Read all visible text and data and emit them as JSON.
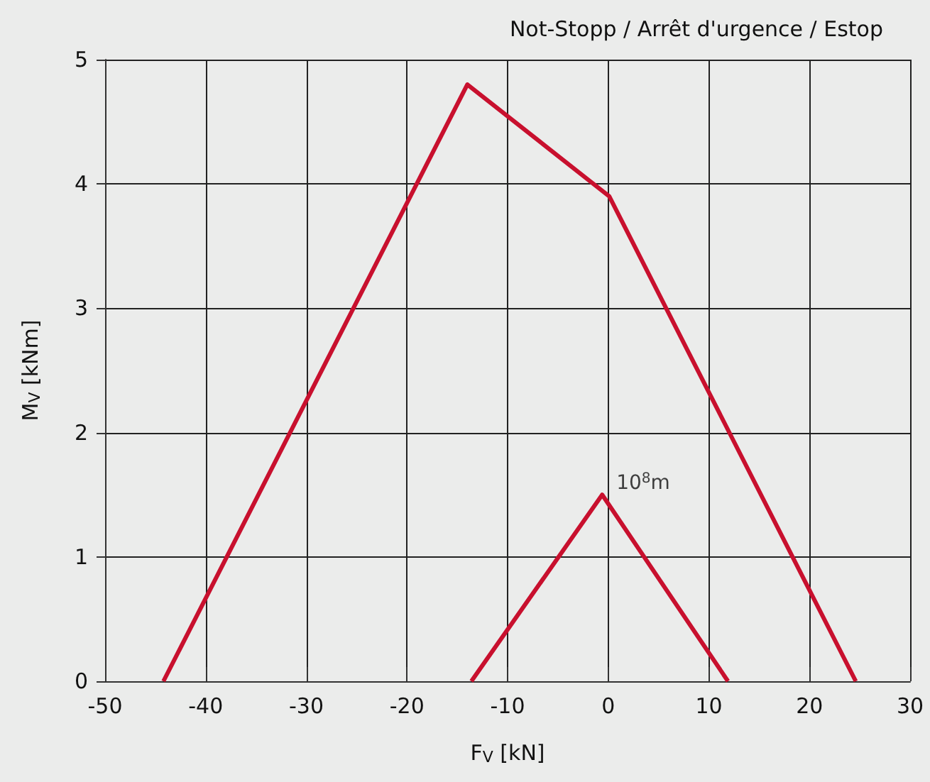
{
  "chart_data": {
    "type": "line",
    "title": "Not-Stopp / Arrêt d'urgence / Estop",
    "xlabel": "F$_{V}$ [kN]",
    "ylabel": "M$_{V}$ [kNm]",
    "series": [
      {
        "color": "#c8102e",
        "x": [
          -44.2,
          -14,
          0.1,
          24.6
        ],
        "values": [
          0,
          4.8,
          3.9,
          0
        ]
      },
      {
        "color": "#c8102e",
        "x": [
          -13.6,
          -0.6,
          11.9
        ],
        "values": [
          0,
          1.5,
          0
        ]
      }
    ],
    "annotations": [
      {
        "text": "10$^{8}$m",
        "x": -0.6,
        "y": 1.5
      }
    ],
    "xlim": [
      -50,
      30
    ],
    "xticks": [
      -50,
      -40,
      -30,
      -20,
      -10,
      0,
      10,
      20,
      30
    ],
    "ylim": [
      0,
      5
    ],
    "yticks": [
      0,
      1,
      2,
      3,
      4,
      5
    ],
    "grid": true,
    "marker": "none",
    "line_style": "solid"
  }
}
